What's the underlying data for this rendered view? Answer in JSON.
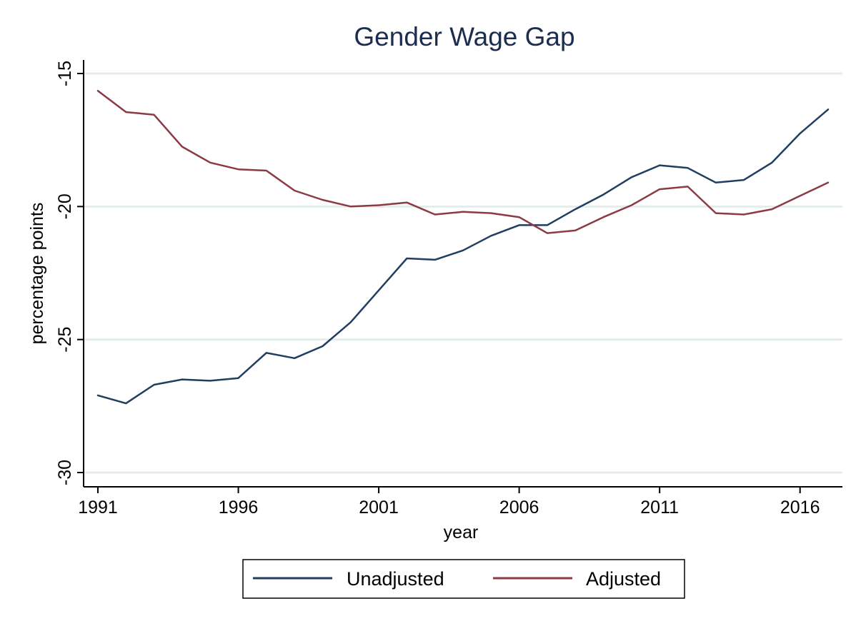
{
  "chart_data": {
    "type": "line",
    "title": "Gender Wage Gap",
    "xlabel": "year",
    "ylabel": "percentage points",
    "xlim": [
      1991,
      2017
    ],
    "ylim": [
      -30,
      -15
    ],
    "xticks": [
      1991,
      1996,
      2001,
      2006,
      2011,
      2016
    ],
    "yticks": [
      -15,
      -20,
      -25,
      -30
    ],
    "grid": "horizontal",
    "legend_position": "bottom",
    "x": [
      1991,
      1992,
      1993,
      1994,
      1995,
      1996,
      1997,
      1998,
      1999,
      2000,
      2001,
      2002,
      2003,
      2004,
      2005,
      2006,
      2007,
      2008,
      2009,
      2010,
      2011,
      2012,
      2013,
      2014,
      2015,
      2016,
      2017
    ],
    "series": [
      {
        "name": "Unadjusted",
        "color": "#1f3e61",
        "values": [
          -27.1,
          -27.4,
          -26.7,
          -26.5,
          -26.55,
          -26.45,
          -25.5,
          -25.7,
          -25.25,
          -24.35,
          -23.15,
          -21.95,
          -22.0,
          -21.65,
          -21.1,
          -20.7,
          -20.7,
          -20.1,
          -19.55,
          -18.9,
          -18.45,
          -18.55,
          -19.1,
          -19.0,
          -18.35,
          -17.25,
          -16.35
        ]
      },
      {
        "name": "Adjusted",
        "color": "#8c3a45",
        "values": [
          -15.65,
          -16.45,
          -16.55,
          -17.75,
          -18.35,
          -18.6,
          -18.65,
          -19.4,
          -19.75,
          -20.0,
          -19.95,
          -19.85,
          -20.3,
          -20.2,
          -20.25,
          -20.4,
          -21.0,
          -20.9,
          -20.4,
          -19.95,
          -19.35,
          -19.25,
          -20.25,
          -20.3,
          -20.1,
          -19.6,
          -19.1
        ]
      }
    ]
  },
  "colors": {
    "title": "#1c2d4f",
    "grid": "#e4ecec",
    "axis": "#000000",
    "background": "#ffffff"
  }
}
